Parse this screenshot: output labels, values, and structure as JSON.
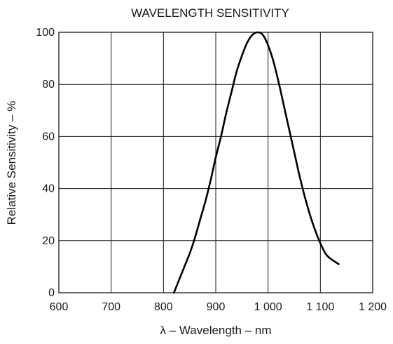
{
  "chart_data": {
    "type": "line",
    "title": "WAVELENGTH SENSITIVITY",
    "xlabel": "λ – Wavelength – nm",
    "ylabel": "Relative Sensitivity – %",
    "xlim": [
      600,
      1200
    ],
    "ylim": [
      0,
      100
    ],
    "x_ticks": [
      600,
      700,
      800,
      900,
      1000,
      1100,
      1200
    ],
    "x_tick_labels": [
      "600",
      "700",
      "800",
      "900",
      "1 000",
      "1 100",
      "1 200"
    ],
    "y_ticks": [
      0,
      20,
      40,
      60,
      80,
      100
    ],
    "y_tick_labels": [
      "0",
      "20",
      "40",
      "60",
      "80",
      "100"
    ],
    "grid": true,
    "legend": "none",
    "series": [
      {
        "x": [
          820,
          830,
          840,
          850,
          860,
          870,
          880,
          890,
          900,
          910,
          920,
          930,
          940,
          950,
          960,
          970,
          980,
          990,
          1000,
          1010,
          1020,
          1030,
          1040,
          1050,
          1060,
          1070,
          1080,
          1090,
          1100,
          1110,
          1120,
          1135
        ],
        "y": [
          0,
          5,
          10,
          15,
          21,
          28,
          35,
          43,
          52,
          60,
          69,
          77,
          85,
          91,
          96,
          99,
          100,
          99,
          95,
          89,
          81,
          72,
          63,
          54,
          45,
          37,
          30,
          24,
          19,
          15,
          13,
          11
        ]
      }
    ],
    "colors": {
      "line": "#000000",
      "grid": "#1a1a1a",
      "text": "#1a1a1a"
    }
  }
}
